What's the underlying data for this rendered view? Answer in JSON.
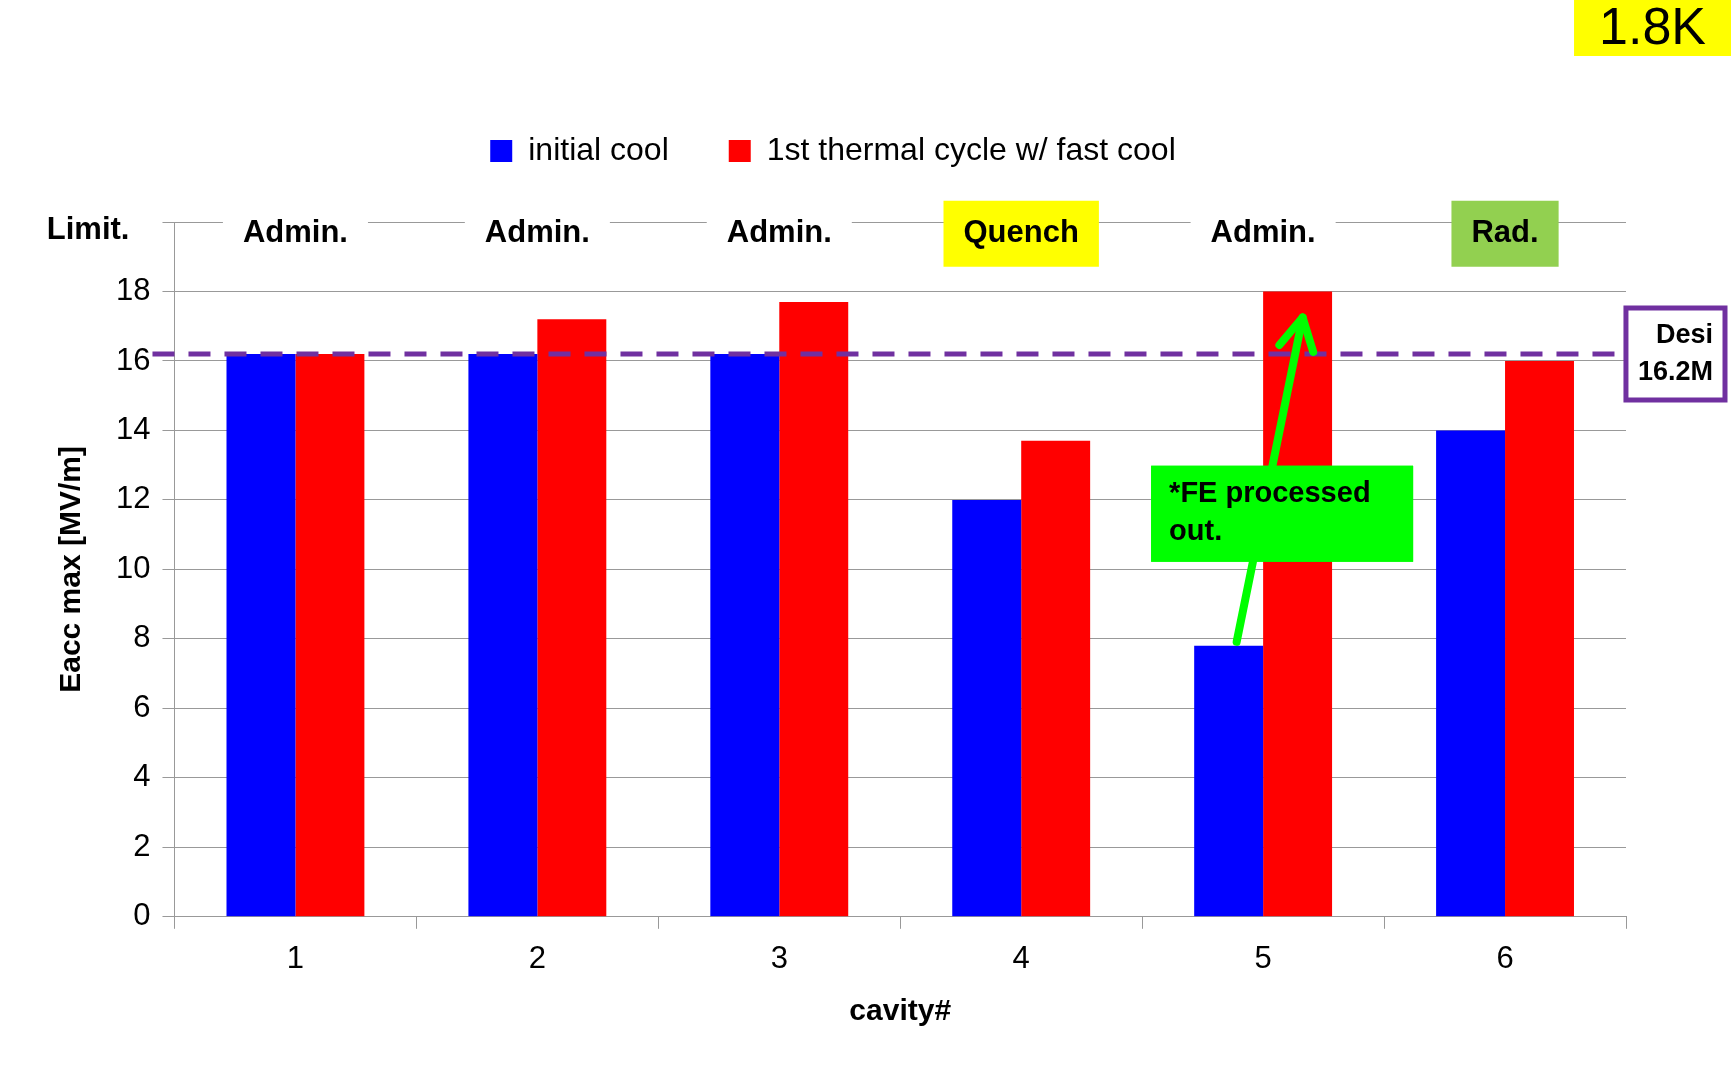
{
  "chart_data": {
    "type": "bar",
    "xlabel": "cavity#",
    "ylabel": "Eacc max [MV/m]",
    "categories": [
      "1",
      "2",
      "3",
      "4",
      "5",
      "6"
    ],
    "series": [
      {
        "name": "initial cool",
        "color": "#0000ff",
        "values": [
          16.2,
          16.2,
          16.2,
          12,
          7.8,
          14
        ]
      },
      {
        "name": "1st thermal cycle w/ fast cool",
        "color": "#ff0000",
        "values": [
          16.2,
          17.2,
          17.7,
          13.7,
          18,
          16
        ]
      }
    ],
    "ylim": [
      0,
      20
    ],
    "yticks": [
      0,
      2,
      4,
      6,
      8,
      10,
      12,
      14,
      16,
      18,
      {
        "value": 20,
        "label": null
      }
    ],
    "grid": "y",
    "legend": "top",
    "ref_lines": [
      {
        "axis": "y",
        "value": 16.2,
        "label": "Desi 16.2M",
        "color": "#7030a0",
        "line_style": "dashed"
      }
    ],
    "annotations": [
      "Limit.",
      "Admin.",
      "Admin.",
      "Admin.",
      "Quench",
      "Admin.",
      "Rad.",
      "*FE processed out.",
      "1.8K"
    ]
  }
}
